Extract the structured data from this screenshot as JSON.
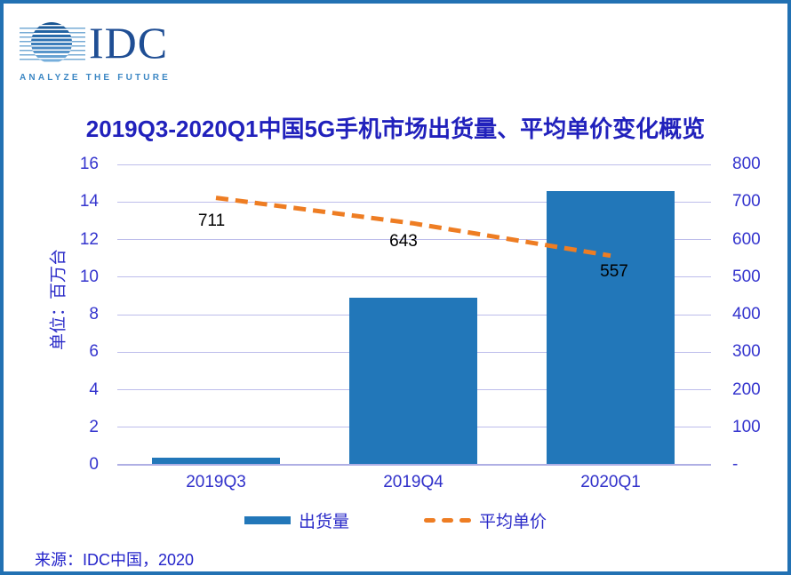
{
  "logo": {
    "name": "IDC",
    "tagline": "ANALYZE THE FUTURE",
    "colors": {
      "wordmark": "#1F4E94",
      "tagline": "#3C87C4",
      "globe_dark": "#15528F",
      "globe_light": "#7FB6E0"
    }
  },
  "title": "2019Q3-2020Q1中国5G手机市场出货量、平均单价变化概览",
  "title_color": "#2121BC",
  "chart_data": {
    "type": "combo-bar-line",
    "categories": [
      "2019Q3",
      "2019Q4",
      "2020Q1"
    ],
    "series": [
      {
        "name": "出货量",
        "type": "bar",
        "axis": "left",
        "color": "#2277B9",
        "values": [
          0.4,
          8.9,
          14.6
        ]
      },
      {
        "name": "平均单价",
        "type": "line",
        "line_style": "dashed",
        "axis": "right",
        "color": "#EE7D23",
        "values": [
          711,
          643,
          557
        ],
        "data_labels": [
          "711",
          "643",
          "557"
        ]
      }
    ],
    "left_axis": {
      "label": "单位：百万台",
      "min": 0,
      "max": 16,
      "tick_step": 2,
      "tick_labels": [
        "0",
        "2",
        "4",
        "6",
        "8",
        "10",
        "12",
        "14",
        "16"
      ]
    },
    "right_axis": {
      "min": 0,
      "max": 800,
      "tick_step": 100,
      "tick_labels": [
        "-",
        "100",
        "200",
        "300",
        "400",
        "500",
        "600",
        "700",
        "800"
      ]
    },
    "grid": true,
    "legend_position": "bottom",
    "axis_text_color": "#3434CE",
    "gridline_color": "#BDBDEB",
    "data_label_color": "#000000"
  },
  "source": "来源：IDC中国，2020",
  "frame_color": "#2271B3"
}
